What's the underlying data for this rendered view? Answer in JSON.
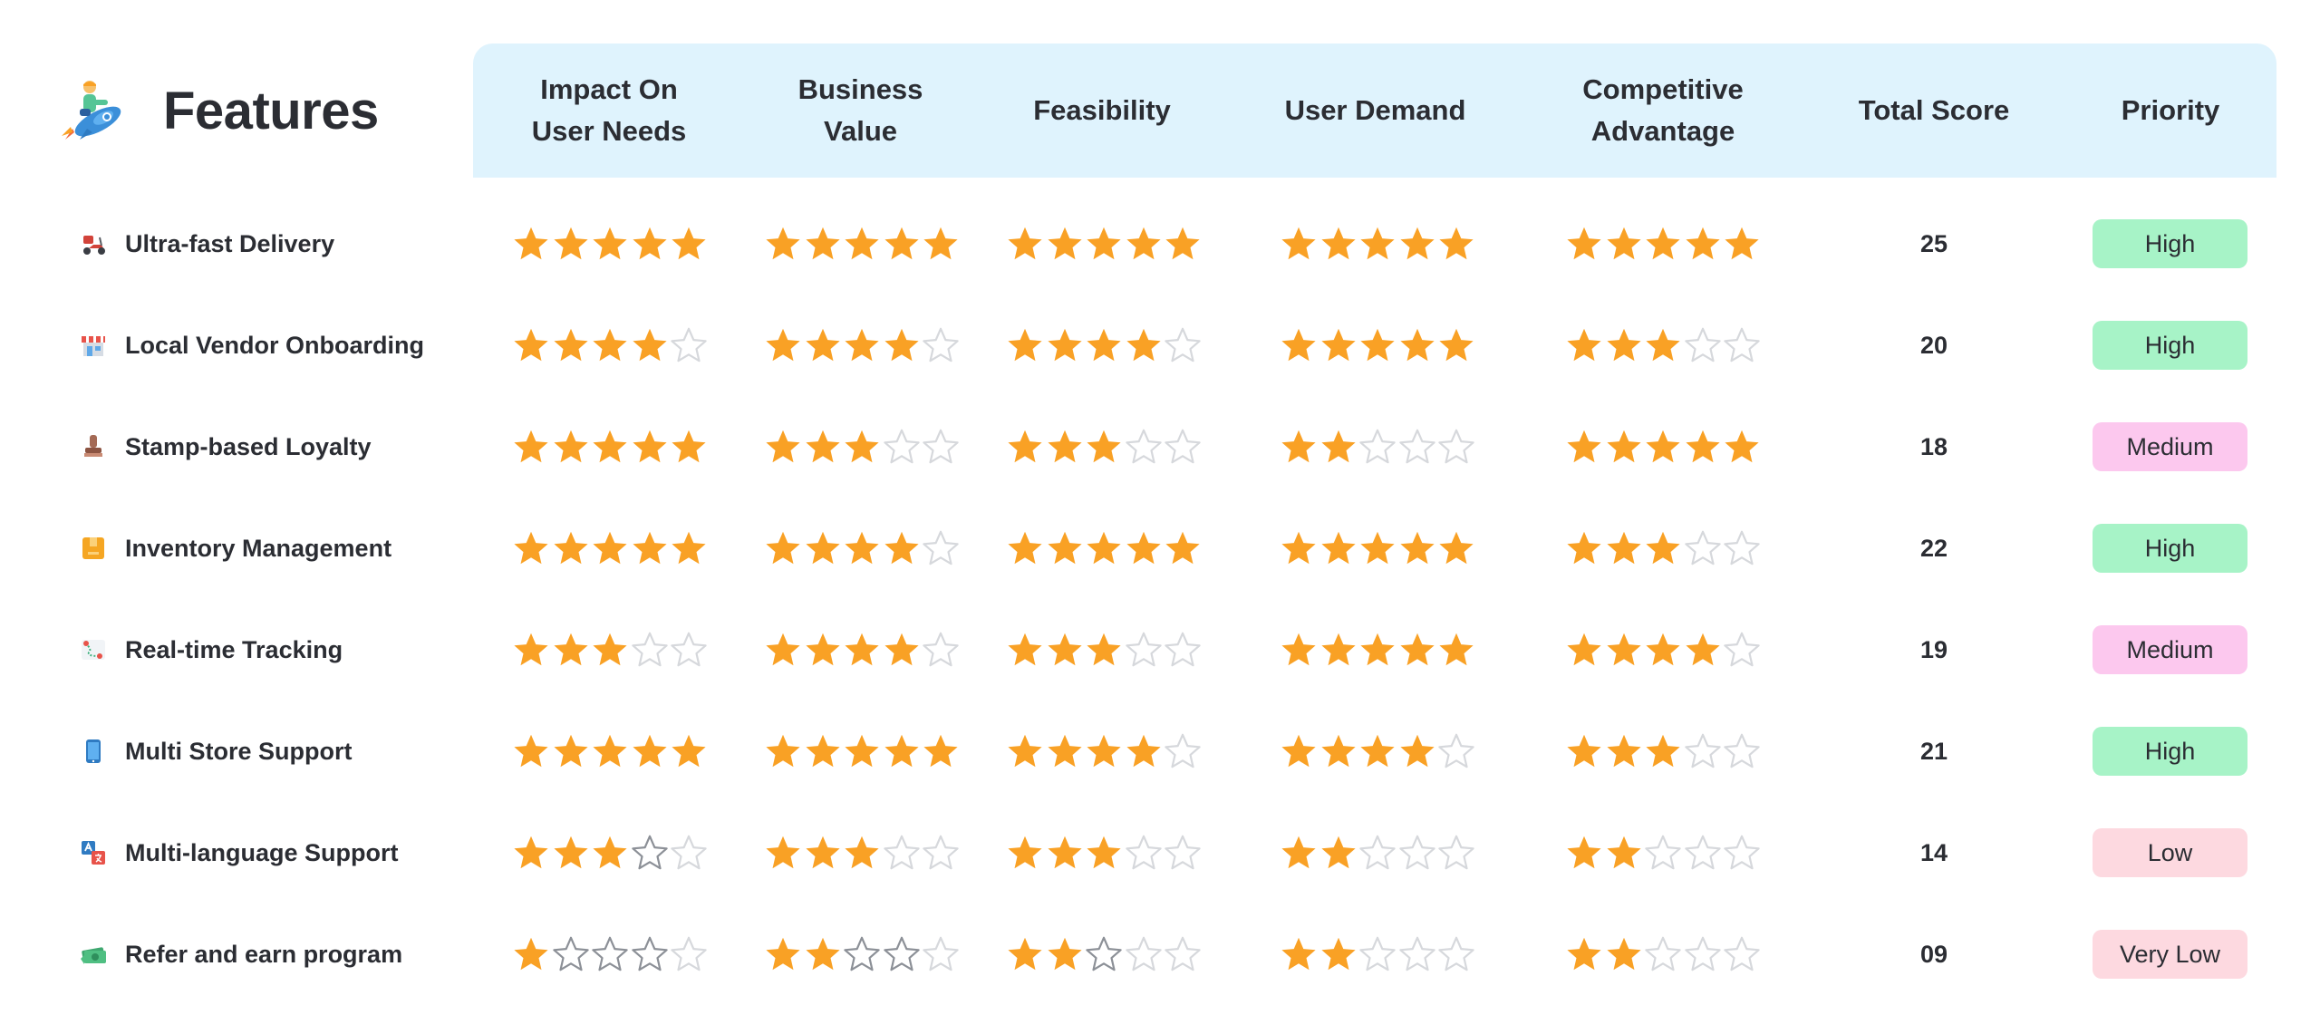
{
  "colors": {
    "header_bg": "#dff3fd",
    "star_filled": "#f9a125",
    "star_empty_light": "#d6d8dc",
    "star_empty_dark": "#8c9097",
    "priority": {
      "High": "#a7f3c7",
      "Medium": "#fcc8ee",
      "Low": "#fdd9e0",
      "Very Low": "#fdd9e0"
    }
  },
  "header": {
    "title": "Features",
    "title_icon": "rocket-person-icon",
    "columns": [
      {
        "key": "impact",
        "label": "Impact On\nUser Needs"
      },
      {
        "key": "business",
        "label": "Business\nValue"
      },
      {
        "key": "feasibility",
        "label": "Feasibility"
      },
      {
        "key": "demand",
        "label": "User Demand"
      },
      {
        "key": "competitive",
        "label": "Competitive\nAdvantage"
      },
      {
        "key": "total",
        "label": "Total Score"
      },
      {
        "key": "priority",
        "label": "Priority"
      }
    ]
  },
  "rows": [
    {
      "feature": "Ultra-fast Delivery",
      "icon": "scooter-icon",
      "ratings": [
        5,
        5,
        5,
        5,
        5
      ],
      "empty_dark": [
        0,
        0,
        0,
        0,
        0
      ],
      "total": "25",
      "priority": "High"
    },
    {
      "feature": "Local Vendor Onboarding",
      "icon": "store-icon",
      "ratings": [
        4,
        4,
        4,
        5,
        3
      ],
      "empty_dark": [
        0,
        0,
        0,
        0,
        0
      ],
      "total": "20",
      "priority": "High"
    },
    {
      "feature": "Stamp-based Loyalty",
      "icon": "stamp-icon",
      "ratings": [
        5,
        3,
        3,
        2,
        5
      ],
      "empty_dark": [
        0,
        0,
        0,
        0,
        0
      ],
      "total": "18",
      "priority": "Medium"
    },
    {
      "feature": "Inventory Management",
      "icon": "box-icon",
      "ratings": [
        5,
        4,
        5,
        5,
        3
      ],
      "empty_dark": [
        0,
        0,
        0,
        0,
        0
      ],
      "total": "22",
      "priority": "High"
    },
    {
      "feature": "Real-time Tracking",
      "icon": "map-route-icon",
      "ratings": [
        3,
        4,
        3,
        5,
        4
      ],
      "empty_dark": [
        0,
        0,
        0,
        0,
        0
      ],
      "total": "19",
      "priority": "Medium"
    },
    {
      "feature": "Multi Store Support",
      "icon": "phone-icon",
      "ratings": [
        5,
        5,
        4,
        4,
        3
      ],
      "empty_dark": [
        0,
        0,
        0,
        0,
        0
      ],
      "total": "21",
      "priority": "High"
    },
    {
      "feature": "Multi-language Support",
      "icon": "translate-icon",
      "ratings": [
        3,
        3,
        3,
        2,
        2
      ],
      "empty_dark": [
        1,
        0,
        0,
        0,
        0
      ],
      "total": "14",
      "priority": "Low"
    },
    {
      "feature": "Refer and earn program",
      "icon": "money-icon",
      "ratings": [
        1,
        2,
        2,
        2,
        2
      ],
      "empty_dark": [
        3,
        2,
        1,
        0,
        0
      ],
      "total": "09",
      "priority": "Very Low"
    }
  ]
}
